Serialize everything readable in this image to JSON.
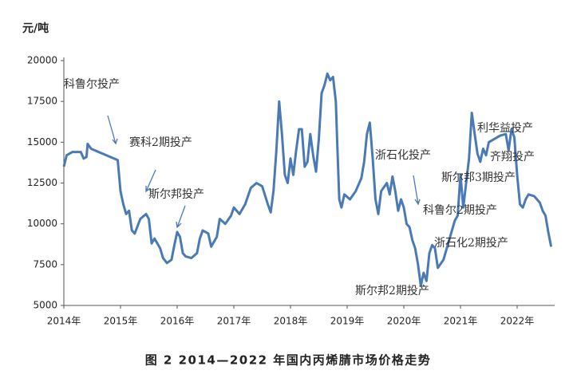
{
  "chart_data": {
    "type": "line",
    "title": "图 2 2014—2022 年国内丙烯腈市场价格走势",
    "y_label": "元/吨",
    "xlim": [
      2014,
      2022.65
    ],
    "ylim": [
      5000,
      20000
    ],
    "xticks": [
      {
        "value": 2014,
        "label": "2014年"
      },
      {
        "value": 2015,
        "label": "2015年"
      },
      {
        "value": 2016,
        "label": "2016年"
      },
      {
        "value": 2017,
        "label": "2017年"
      },
      {
        "value": 2018,
        "label": "2018年"
      },
      {
        "value": 2019,
        "label": "2019年"
      },
      {
        "value": 2020,
        "label": "2020年"
      },
      {
        "value": 2021,
        "label": "2021年"
      },
      {
        "value": 2022,
        "label": "2022年"
      }
    ],
    "yticks": [
      5000,
      7500,
      10000,
      12500,
      15000,
      17500,
      20000
    ],
    "annotations": [
      "科鲁尔投产",
      "赛科2期投产",
      "斯尔邦投产",
      "浙石化投产",
      "科鲁尔2期投产",
      "浙石化2期投产",
      "斯尔邦2期投产",
      "斯尔邦3期投产",
      "利华益投产",
      "齐翔投产"
    ],
    "series": [
      {
        "color": "#4a7ab5",
        "x": [
          2014.0,
          2014.05,
          2014.15,
          2014.3,
          2014.35,
          2014.4,
          2014.42,
          2014.48,
          2014.95,
          2015.0,
          2015.05,
          2015.1,
          2015.15,
          2015.2,
          2015.25,
          2015.35,
          2015.45,
          2015.5,
          2015.55,
          2015.6,
          2015.7,
          2015.75,
          2015.82,
          2015.9,
          2015.95,
          2016.0,
          2016.05,
          2016.1,
          2016.15,
          2016.25,
          2016.35,
          2016.4,
          2016.45,
          2016.55,
          2016.6,
          2016.7,
          2016.75,
          2016.85,
          2016.95,
          2017.0,
          2017.1,
          2017.2,
          2017.3,
          2017.4,
          2017.5,
          2017.6,
          2017.65,
          2017.7,
          2017.75,
          2017.8,
          2017.85,
          2017.9,
          2017.95,
          2018.0,
          2018.05,
          2018.1,
          2018.15,
          2018.2,
          2018.25,
          2018.3,
          2018.35,
          2018.4,
          2018.45,
          2018.5,
          2018.55,
          2018.6,
          2018.65,
          2018.7,
          2018.75,
          2018.8,
          2018.83,
          2018.86,
          2018.9,
          2018.95,
          2019.05,
          2019.15,
          2019.25,
          2019.3,
          2019.35,
          2019.4,
          2019.45,
          2019.5,
          2019.55,
          2019.6,
          2019.7,
          2019.75,
          2019.8,
          2019.85,
          2019.9,
          2019.95,
          2020.0,
          2020.05,
          2020.1,
          2020.15,
          2020.2,
          2020.25,
          2020.3,
          2020.35,
          2020.4,
          2020.45,
          2020.5,
          2020.55,
          2020.6,
          2020.7,
          2020.8,
          2020.9,
          2020.95,
          2021.0,
          2021.05,
          2021.1,
          2021.15,
          2021.2,
          2021.25,
          2021.3,
          2021.35,
          2021.4,
          2021.45,
          2021.5,
          2021.6,
          2021.7,
          2021.8,
          2021.85,
          2021.9,
          2021.95,
          2022.0,
          2022.05,
          2022.1,
          2022.15,
          2022.2,
          2022.3,
          2022.4,
          2022.45,
          2022.5,
          2022.55,
          2022.6
        ],
        "values": [
          13500,
          14200,
          14400,
          14400,
          14000,
          14100,
          14900,
          14600,
          13900,
          12000,
          11200,
          10600,
          10800,
          9600,
          9400,
          10300,
          10600,
          10300,
          8800,
          9100,
          8500,
          7900,
          7600,
          7800,
          8700,
          9500,
          9200,
          8200,
          8000,
          7900,
          8200,
          9100,
          9600,
          9400,
          8600,
          9200,
          10300,
          10000,
          10500,
          11000,
          10600,
          11200,
          12200,
          12500,
          12300,
          11200,
          10700,
          12000,
          14500,
          17500,
          15500,
          13000,
          12500,
          14000,
          13000,
          14500,
          15800,
          15800,
          13500,
          13800,
          15500,
          14200,
          13200,
          15200,
          18000,
          18500,
          19200,
          18800,
          19000,
          17500,
          14500,
          11500,
          11000,
          11800,
          11500,
          12000,
          12800,
          13800,
          15500,
          16200,
          14000,
          11500,
          10600,
          12000,
          12500,
          11800,
          12900,
          12000,
          10800,
          11500,
          11000,
          10000,
          9800,
          9000,
          8500,
          7500,
          6200,
          7000,
          6500,
          8200,
          8700,
          8500,
          7300,
          7800,
          9000,
          10200,
          10500,
          13000,
          11000,
          12500,
          14000,
          16800,
          15500,
          14300,
          13800,
          14600,
          14200,
          15000,
          15200,
          15400,
          15500,
          14500,
          15800,
          15300,
          13000,
          11200,
          11000,
          11500,
          11800,
          11700,
          11300,
          10800,
          10500,
          9500,
          8600
        ]
      }
    ]
  }
}
